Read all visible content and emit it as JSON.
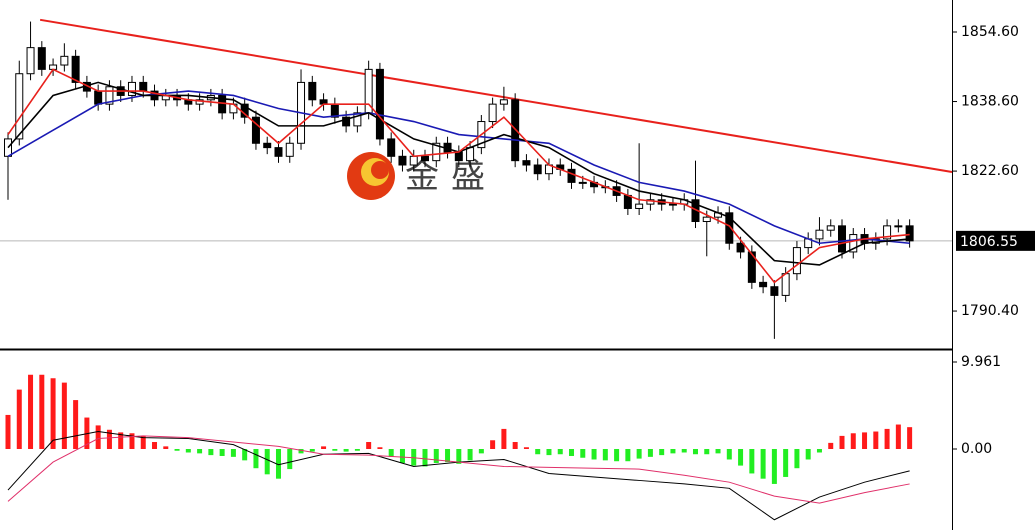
{
  "chart_data": [
    {
      "type": "candlestick",
      "watermark": "金盛",
      "up_color": "#ffffff",
      "down_color": "#000000",
      "edge_color": "#000000",
      "xlim": [
        -0.71,
        83.76
      ],
      "ylim": [
        1781.9,
        1861.96
      ],
      "yticks": [
        {
          "value": 1854.6,
          "label": "1854.60"
        },
        {
          "value": 1838.6,
          "label": "1838.60"
        },
        {
          "value": 1822.6,
          "label": "1822.60"
        },
        {
          "value": 1790.4,
          "label": "1790.40"
        }
      ],
      "last_price": {
        "value": 1806.55,
        "label": "1806.55"
      },
      "open": [
        1826,
        1830,
        1845,
        1851,
        1846,
        1847,
        1849,
        1843,
        1841,
        1838,
        1842,
        1840,
        1843,
        1841,
        1839,
        1840,
        1839,
        1838,
        1839,
        1840,
        1836,
        1838,
        1835,
        1829,
        1828,
        1826,
        1829,
        1843,
        1839,
        1838,
        1835,
        1833,
        1836,
        1846,
        1830,
        1826,
        1824,
        1826,
        1825,
        1829,
        1827,
        1825,
        1828,
        1834,
        1838,
        1839,
        1825,
        1824,
        1822,
        1824,
        1823,
        1820,
        1820,
        1819,
        1819,
        1817,
        1814,
        1815,
        1816,
        1815,
        1815,
        1816,
        1811,
        1812,
        1813,
        1806,
        1804,
        1797,
        1796,
        1794,
        1799,
        1805,
        1807,
        1809,
        1810,
        1804,
        1808,
        1806,
        1807,
        1810,
        1810
      ],
      "high": [
        1831.5,
        1848,
        1857,
        1852.5,
        1848.5,
        1852,
        1850.5,
        1844.5,
        1842.5,
        1843.5,
        1843.5,
        1844.5,
        1844.5,
        1842.5,
        1841.5,
        1841.5,
        1840.5,
        1840.5,
        1841.5,
        1841.5,
        1839.5,
        1839.5,
        1836.5,
        1830.5,
        1829.5,
        1830.5,
        1846,
        1844.5,
        1840.5,
        1839.5,
        1836.5,
        1837.5,
        1848,
        1847.5,
        1831.5,
        1827.5,
        1827.5,
        1827.5,
        1830.5,
        1830.5,
        1828.5,
        1829.5,
        1835.5,
        1839.5,
        1842,
        1840.5,
        1826.5,
        1825.5,
        1825.5,
        1825.5,
        1824.5,
        1821.5,
        1821.5,
        1820.5,
        1820.5,
        1818.5,
        1829,
        1817.5,
        1817.5,
        1816.5,
        1817.5,
        1825,
        1813.5,
        1814.5,
        1814.5,
        1807.5,
        1805.5,
        1798.5,
        1797.5,
        1800.5,
        1806.5,
        1808.5,
        1812,
        1811.5,
        1811.5,
        1809.5,
        1809.5,
        1808.5,
        1811.5,
        1811.5,
        1811.5
      ],
      "low": [
        1816,
        1828.5,
        1843.5,
        1844.5,
        1844.5,
        1845.5,
        1841.5,
        1839.5,
        1836.5,
        1836.5,
        1838.5,
        1838.5,
        1839.5,
        1837.5,
        1837.5,
        1837.5,
        1836.5,
        1836.5,
        1837.5,
        1834.5,
        1834.5,
        1833.5,
        1827.5,
        1826.5,
        1824.5,
        1824.5,
        1827.5,
        1837.5,
        1836.5,
        1833.5,
        1831.5,
        1831.5,
        1834.5,
        1828.5,
        1824.5,
        1822.5,
        1822.5,
        1823.5,
        1823.5,
        1825.5,
        1823.5,
        1823.5,
        1826.5,
        1832.5,
        1836.5,
        1823.5,
        1822.5,
        1820.5,
        1820.5,
        1821.5,
        1818.5,
        1818.5,
        1817.5,
        1817.5,
        1815.5,
        1812.5,
        1812.5,
        1813.5,
        1813.5,
        1813.5,
        1813.5,
        1809.5,
        1803,
        1810.5,
        1804.5,
        1802.5,
        1795.5,
        1794.5,
        1784,
        1792.5,
        1797.5,
        1803.5,
        1805.5,
        1807.5,
        1802.5,
        1802.5,
        1804.5,
        1804.5,
        1805.5,
        1808.5,
        1805
      ],
      "close": [
        1830,
        1845,
        1851,
        1846,
        1847,
        1849,
        1843,
        1841,
        1838,
        1842,
        1840,
        1843,
        1841,
        1839,
        1840,
        1839,
        1838,
        1839,
        1840,
        1836,
        1838,
        1835,
        1829,
        1828,
        1826,
        1829,
        1843,
        1839,
        1838,
        1835,
        1833,
        1836,
        1846,
        1830,
        1826,
        1824,
        1826,
        1825,
        1829,
        1827,
        1825,
        1828,
        1834,
        1838,
        1839,
        1825,
        1824,
        1822,
        1824,
        1823,
        1820,
        1820,
        1819,
        1819,
        1817,
        1814,
        1815,
        1816,
        1815,
        1815,
        1816,
        1811,
        1812,
        1813,
        1806,
        1804,
        1797,
        1796,
        1794,
        1799,
        1805,
        1807,
        1809,
        1810,
        1804,
        1808,
        1806,
        1807,
        1810,
        1810,
        1806.55
      ],
      "series": [
        {
          "color": "#1a1ab4",
          "x": [
            0,
            4,
            8,
            12,
            16,
            20,
            24,
            28,
            32,
            36,
            40,
            44,
            48,
            52,
            56,
            60,
            64,
            68,
            72,
            76,
            80
          ],
          "values": [
            1826,
            1832,
            1838,
            1840,
            1841,
            1840,
            1837,
            1835,
            1836,
            1834,
            1831,
            1830,
            1829,
            1824,
            1820,
            1818,
            1815,
            1810,
            1806,
            1807,
            1806
          ]
        },
        {
          "color": "#000000",
          "x": [
            0,
            4,
            8,
            12,
            16,
            20,
            24,
            28,
            32,
            36,
            40,
            44,
            48,
            52,
            56,
            60,
            64,
            68,
            72,
            76,
            80
          ],
          "values": [
            1828,
            1840,
            1843,
            1840,
            1840,
            1839,
            1833,
            1833,
            1836,
            1830,
            1827,
            1831,
            1828,
            1822,
            1818,
            1816,
            1812,
            1802,
            1801,
            1806,
            1807
          ]
        },
        {
          "color": "#e8211c",
          "x": [
            0,
            4,
            8,
            12,
            16,
            20,
            24,
            28,
            32,
            36,
            40,
            44,
            48,
            52,
            56,
            60,
            64,
            68,
            72,
            76,
            80
          ],
          "values": [
            1831,
            1846,
            1841,
            1841,
            1839,
            1838,
            1829,
            1838,
            1838,
            1826,
            1827,
            1835,
            1824,
            1820,
            1816,
            1815,
            1810,
            1797,
            1805,
            1807,
            1808
          ]
        }
      ],
      "trendline": {
        "color": "#e8211c",
        "x": [
          2.85,
          83.76
        ],
        "values": [
          1857.4,
          1822.4
        ]
      }
    },
    {
      "type": "macd",
      "xlim": [
        -0.71,
        83.76
      ],
      "ylim": [
        -9.16,
        11.22
      ],
      "yticks": [
        9.961,
        {
          "value": 0,
          "label": "0.00"
        }
      ],
      "pos_color": "#ff1a1a",
      "neg_color": "#22ee22",
      "values": [
        3.9,
        6.8,
        8.5,
        8.5,
        8.1,
        7.6,
        5.6,
        3.6,
        2.7,
        2.2,
        1.9,
        1.8,
        1.5,
        0.8,
        0.3,
        -0.2,
        -0.4,
        -0.5,
        -0.7,
        -0.8,
        -0.9,
        -1.3,
        -2.2,
        -2.9,
        -3.4,
        -2.3,
        -0.5,
        -0.3,
        0.3,
        -0.2,
        -0.3,
        -0.2,
        0.8,
        0.2,
        -0.9,
        -1.6,
        -1.9,
        -2.0,
        -1.6,
        -1.5,
        -1.7,
        -1.3,
        -0.5,
        1.0,
        2.3,
        0.8,
        0.2,
        -0.6,
        -0.7,
        -0.6,
        -0.8,
        -1.0,
        -1.2,
        -1.3,
        -1.4,
        -1.4,
        -1.1,
        -0.9,
        -0.7,
        -0.5,
        -0.4,
        -0.6,
        -0.6,
        -0.5,
        -1.2,
        -1.9,
        -2.8,
        -3.4,
        -4.0,
        -3.2,
        -2.2,
        -1.2,
        -0.4,
        0.7,
        1.5,
        1.8,
        1.9,
        2.0,
        2.3,
        2.8,
        2.5
      ],
      "series": [
        {
          "color": "#000000",
          "x": [
            0,
            4,
            8,
            12,
            16,
            20,
            24,
            28,
            32,
            36,
            40,
            44,
            48,
            52,
            56,
            60,
            64,
            68,
            72,
            76,
            80
          ],
          "values": [
            -4.7,
            1.0,
            2.0,
            1.3,
            1.2,
            0.5,
            -1.8,
            -0.6,
            -0.5,
            -2.0,
            -1.5,
            -1.2,
            -2.8,
            -3.2,
            -3.6,
            -4.0,
            -4.5,
            -8.1,
            -5.5,
            -3.8,
            -2.5
          ]
        },
        {
          "color": "#e0306a",
          "x": [
            0,
            4,
            8,
            12,
            16,
            20,
            24,
            28,
            32,
            36,
            40,
            44,
            48,
            52,
            56,
            60,
            64,
            68,
            72,
            76,
            80
          ],
          "values": [
            -6.0,
            -1.5,
            1.2,
            1.5,
            1.3,
            0.8,
            0.3,
            -0.6,
            -0.7,
            -1.0,
            -1.5,
            -2.0,
            -2.1,
            -2.2,
            -2.3,
            -3.0,
            -3.8,
            -5.4,
            -6.2,
            -5.0,
            -4.0
          ]
        }
      ]
    }
  ]
}
